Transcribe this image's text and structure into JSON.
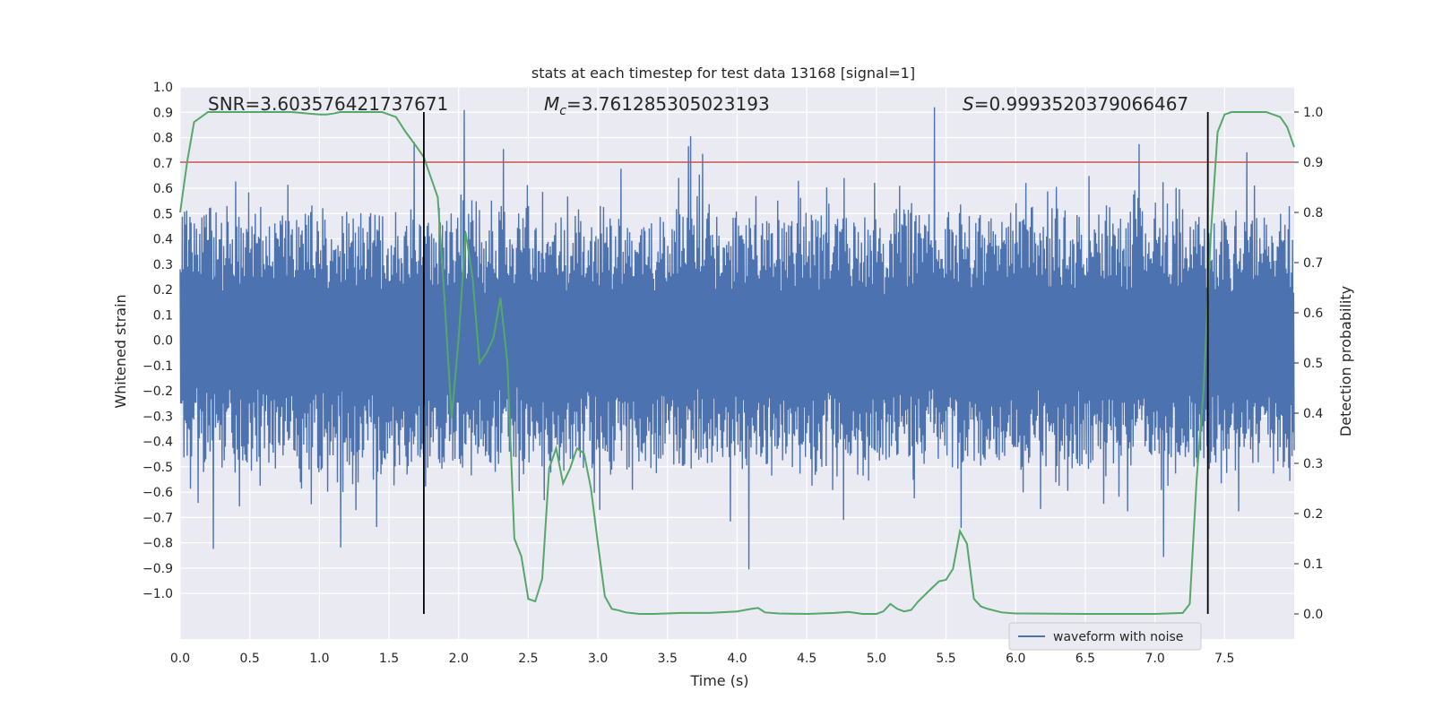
{
  "chart_data": {
    "type": "line",
    "title": "stats at each timestep for test data 13168 [signal=1]",
    "xlabel": "Time (s)",
    "ylabel_left": "Whitened strain",
    "ylabel_right": "Detection probability",
    "xlim": [
      0.0,
      8.0
    ],
    "ylim_left": [
      -1.18,
      1.0
    ],
    "ylim_right": [
      -0.05,
      1.05
    ],
    "xticks": [
      "0.0",
      "0.5",
      "1.0",
      "1.5",
      "2.0",
      "2.5",
      "3.0",
      "3.5",
      "4.0",
      "4.5",
      "5.0",
      "5.5",
      "6.0",
      "6.5",
      "7.0",
      "7.5"
    ],
    "xtick_values": [
      0.0,
      0.5,
      1.0,
      1.5,
      2.0,
      2.5,
      3.0,
      3.5,
      4.0,
      4.5,
      5.0,
      5.5,
      6.0,
      6.5,
      7.0,
      7.5
    ],
    "yticks_left": [
      "1.0",
      "0.9",
      "0.8",
      "0.7",
      "0.6",
      "0.5",
      "0.4",
      "0.3",
      "0.2",
      "0.1",
      "0.0",
      "−0.1",
      "−0.2",
      "−0.3",
      "−0.4",
      "−0.5",
      "−0.6",
      "−0.7",
      "−0.8",
      "−0.9",
      "−1.0"
    ],
    "ytick_values_left": [
      1.0,
      0.9,
      0.8,
      0.7,
      0.6,
      0.5,
      0.4,
      0.3,
      0.2,
      0.1,
      0.0,
      -0.1,
      -0.2,
      -0.3,
      -0.4,
      -0.5,
      -0.6,
      -0.7,
      -0.8,
      -0.9,
      -1.0
    ],
    "yticks_right": [
      "1.0",
      "0.9",
      "0.8",
      "0.7",
      "0.6",
      "0.5",
      "0.4",
      "0.3",
      "0.2",
      "0.1",
      "0.0"
    ],
    "ytick_values_right": [
      1.0,
      0.9,
      0.8,
      0.7,
      0.6,
      0.5,
      0.4,
      0.3,
      0.2,
      0.1,
      0.0
    ],
    "grid": true,
    "legend_position": "lower-right",
    "legend_label": "waveform with noise",
    "annotations": {
      "snr": "SNR=3.603576421737671",
      "mc_symbol": "M",
      "mc_sub": "c",
      "mc_value": "=3.761285305023193⁤",
      "s_symbol": "S",
      "s_value": "=0.9993520379066467"
    },
    "threshold_probability": 0.9,
    "vertical_markers": [
      1.75,
      7.38
    ],
    "waveform_noise": {
      "color": "#4c72b0",
      "seed": 13168,
      "num_samples": 2048,
      "x_range": [
        0.0,
        8.0
      ],
      "description": "dense whitened strain noise, mostly within ±0.45 with spikes up to ±0.9"
    },
    "probability_series": {
      "color": "#55a868",
      "x": [
        0.0,
        0.05,
        0.1,
        0.2,
        0.4,
        0.6,
        0.8,
        1.0,
        1.05,
        1.1,
        1.15,
        1.2,
        1.3,
        1.45,
        1.55,
        1.62,
        1.7,
        1.75,
        1.8,
        1.85,
        1.9,
        1.95,
        2.0,
        2.05,
        2.1,
        2.15,
        2.2,
        2.25,
        2.3,
        2.35,
        2.4,
        2.45,
        2.5,
        2.55,
        2.6,
        2.65,
        2.7,
        2.75,
        2.8,
        2.85,
        2.9,
        2.95,
        3.0,
        3.05,
        3.1,
        3.15,
        3.2,
        3.3,
        3.4,
        3.6,
        3.8,
        4.0,
        4.1,
        4.15,
        4.2,
        4.3,
        4.5,
        4.7,
        4.8,
        4.9,
        5.0,
        5.05,
        5.1,
        5.15,
        5.2,
        5.25,
        5.3,
        5.4,
        5.45,
        5.5,
        5.55,
        5.6,
        5.65,
        5.7,
        5.75,
        5.8,
        5.9,
        6.0,
        6.5,
        7.0,
        7.2,
        7.25,
        7.3,
        7.35,
        7.4,
        7.45,
        7.5,
        7.55,
        7.6,
        7.7,
        7.8,
        7.85,
        7.9,
        7.95,
        8.0
      ],
      "y": [
        0.8,
        0.9,
        0.98,
        1.0,
        1.0,
        1.0,
        1.0,
        0.995,
        0.995,
        0.997,
        1.0,
        1.0,
        1.0,
        1.0,
        0.99,
        0.96,
        0.93,
        0.91,
        0.87,
        0.83,
        0.62,
        0.39,
        0.55,
        0.76,
        0.67,
        0.5,
        0.52,
        0.55,
        0.63,
        0.5,
        0.15,
        0.115,
        0.03,
        0.025,
        0.07,
        0.29,
        0.33,
        0.26,
        0.29,
        0.33,
        0.32,
        0.25,
        0.14,
        0.035,
        0.01,
        0.007,
        0.003,
        0.0,
        0.0,
        0.002,
        0.002,
        0.005,
        0.01,
        0.012,
        0.003,
        0.001,
        0.0,
        0.002,
        0.004,
        0.0,
        0.0,
        0.005,
        0.02,
        0.01,
        0.005,
        0.008,
        0.025,
        0.052,
        0.065,
        0.068,
        0.09,
        0.165,
        0.14,
        0.03,
        0.015,
        0.01,
        0.003,
        0.001,
        0.0,
        0.0,
        0.002,
        0.02,
        0.27,
        0.45,
        0.75,
        0.96,
        0.995,
        1.0,
        1.0,
        1.0,
        1.0,
        0.995,
        0.99,
        0.97,
        0.93
      ]
    }
  }
}
